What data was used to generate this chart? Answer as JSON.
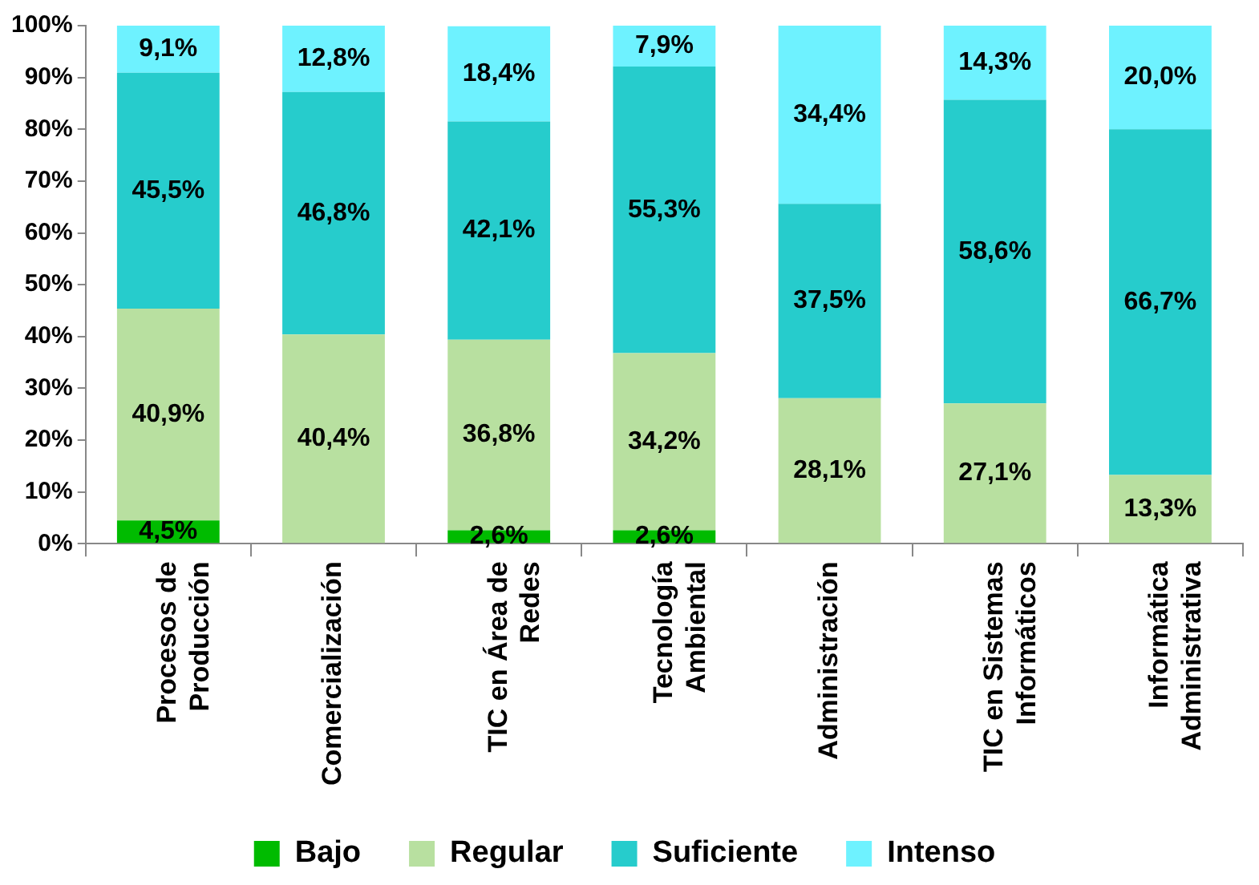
{
  "chart_data": {
    "type": "bar",
    "stacked": true,
    "categories": [
      "Procesos de Producción",
      "Comercialización",
      "TIC en Área de Redes",
      "Tecnología Ambiental",
      "Administración",
      "TIC en Sistemas Informáticos",
      "Informática Administrativa"
    ],
    "series": [
      {
        "name": "Bajo",
        "color": "#00bb00",
        "values": [
          4.5,
          0,
          2.6,
          2.6,
          0,
          0,
          0
        ],
        "value_labels": [
          "4,5%",
          null,
          "2,6%",
          "2,6%",
          null,
          null,
          null
        ]
      },
      {
        "name": "Regular",
        "color": "#b8e0a0",
        "values": [
          40.9,
          40.4,
          36.8,
          34.2,
          28.1,
          27.1,
          13.3
        ],
        "value_labels": [
          "40,9%",
          "40,4%",
          "36,8%",
          "34,2%",
          "28,1%",
          "27,1%",
          "13,3%"
        ]
      },
      {
        "name": "Suficiente",
        "color": "#26cccc",
        "values": [
          45.5,
          46.8,
          42.1,
          55.3,
          37.5,
          58.6,
          66.7
        ],
        "value_labels": [
          "45,5%",
          "46,8%",
          "42,1%",
          "55,3%",
          "37,5%",
          "58,6%",
          "66,7%"
        ]
      },
      {
        "name": "Intenso",
        "color": "#6ef2ff",
        "values": [
          9.1,
          12.8,
          18.4,
          7.9,
          34.4,
          14.3,
          20.0
        ],
        "value_labels": [
          "9,1%",
          "12,8%",
          "18,4%",
          "7,9%",
          "34,4%",
          "14,3%",
          "20,0%"
        ]
      }
    ],
    "ylim": [
      0,
      100
    ],
    "yticks": [
      {
        "value": 0,
        "label": "0%"
      },
      {
        "value": 10,
        "label": "10%"
      },
      {
        "value": 20,
        "label": "20%"
      },
      {
        "value": 30,
        "label": "30%"
      },
      {
        "value": 40,
        "label": "40%"
      },
      {
        "value": 50,
        "label": "50%"
      },
      {
        "value": 60,
        "label": "60%"
      },
      {
        "value": 70,
        "label": "70%"
      },
      {
        "value": 80,
        "label": "80%"
      },
      {
        "value": 90,
        "label": "90%"
      },
      {
        "value": 100,
        "label": "100%"
      }
    ],
    "grid": false,
    "legend": "bottom"
  }
}
